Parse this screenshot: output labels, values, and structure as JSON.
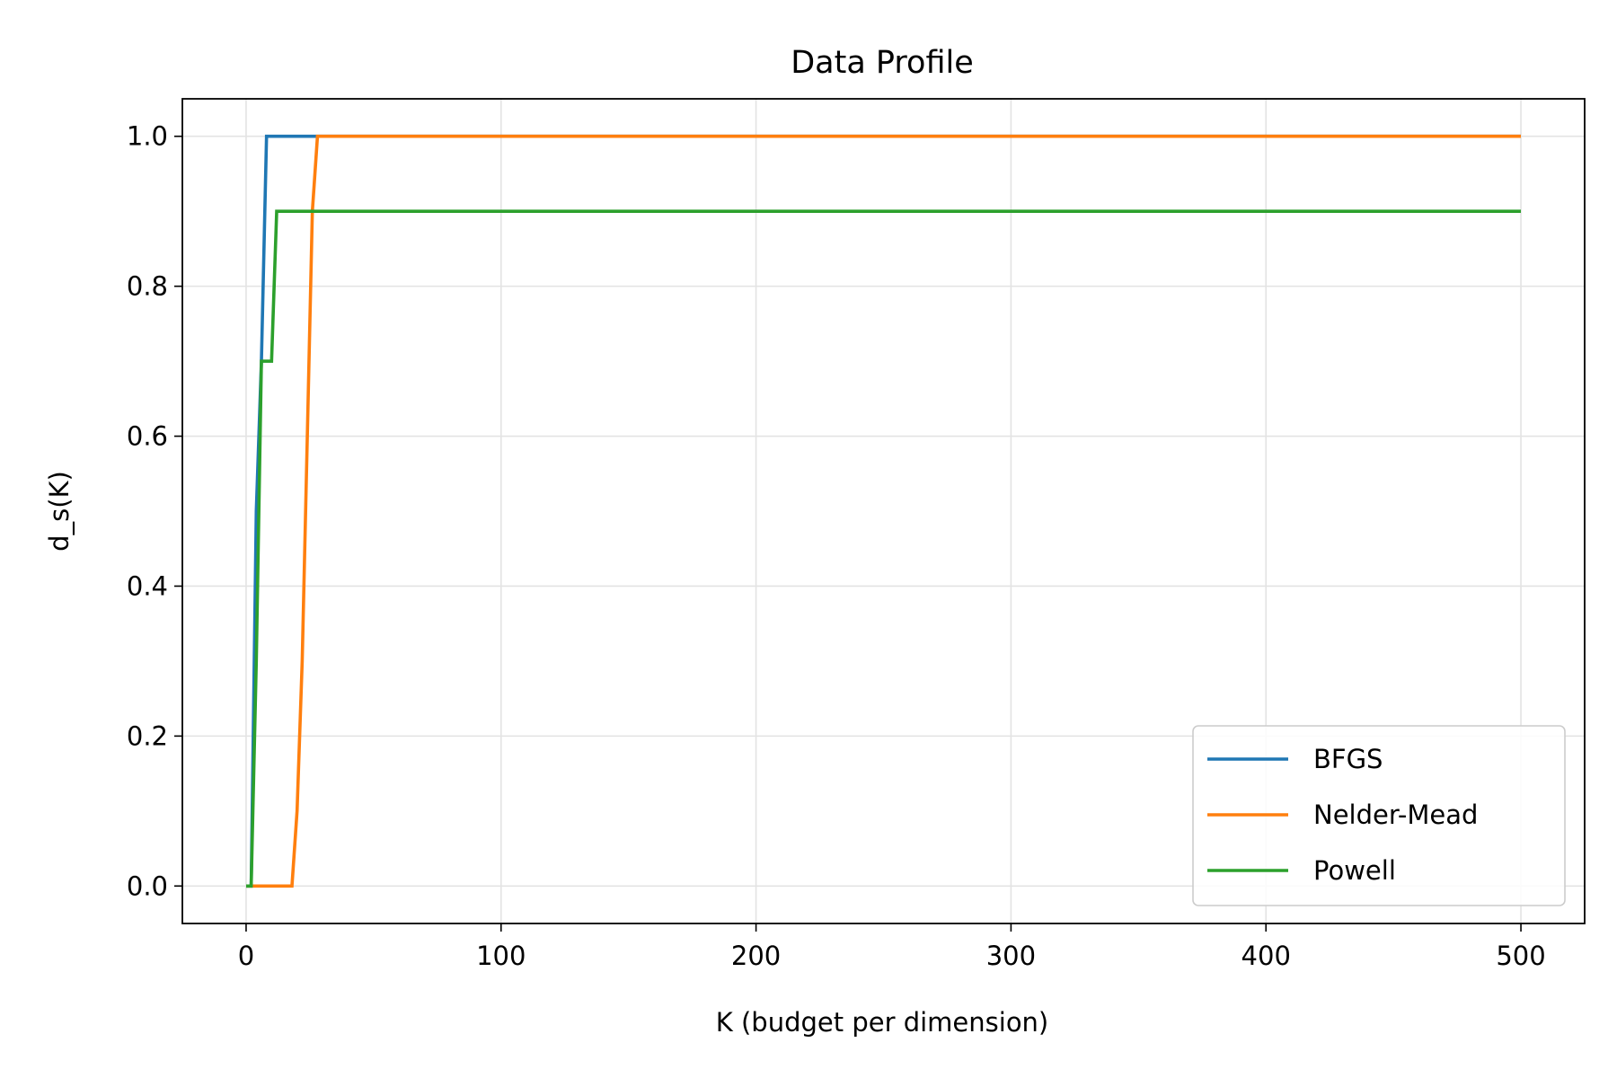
{
  "chart_data": {
    "type": "line",
    "title": "Data Profile",
    "xlabel": "K (budget per dimension)",
    "ylabel": "d_s(K)",
    "xlim": [
      -25,
      525
    ],
    "ylim": [
      -0.05,
      1.05
    ],
    "xticks": [
      0,
      100,
      200,
      300,
      400,
      500
    ],
    "yticks": [
      0.0,
      0.2,
      0.4,
      0.6,
      0.8,
      1.0
    ],
    "xtick_labels": [
      "0",
      "100",
      "200",
      "300",
      "400",
      "500"
    ],
    "ytick_labels": [
      "0.0",
      "0.2",
      "0.4",
      "0.6",
      "0.8",
      "1.0"
    ],
    "grid": true,
    "legend_position": "lower-right",
    "series": [
      {
        "name": "BFGS",
        "color": "#1f77b4",
        "x": [
          0,
          2,
          4,
          6,
          8,
          10,
          12,
          14,
          16,
          18,
          20,
          22,
          24,
          26,
          28,
          500
        ],
        "y": [
          0,
          0,
          0.5,
          0.7,
          1.0,
          1.0,
          1.0,
          1.0,
          1.0,
          1.0,
          1.0,
          1.0,
          1.0,
          1.0,
          1.0,
          1.0
        ]
      },
      {
        "name": "Nelder-Mead",
        "color": "#ff7f0e",
        "x": [
          0,
          2,
          4,
          6,
          8,
          10,
          12,
          14,
          16,
          18,
          20,
          22,
          24,
          26,
          28,
          500
        ],
        "y": [
          0,
          0,
          0,
          0,
          0,
          0,
          0,
          0,
          0,
          0,
          0.1,
          0.3,
          0.6,
          0.9,
          1.0,
          1.0
        ]
      },
      {
        "name": "Powell",
        "color": "#2ca02c",
        "x": [
          0,
          2,
          4,
          6,
          8,
          10,
          12,
          14,
          16,
          18,
          20,
          22,
          24,
          26,
          28,
          500
        ],
        "y": [
          0,
          0,
          0.3,
          0.7,
          0.7,
          0.7,
          0.9,
          0.9,
          0.9,
          0.9,
          0.9,
          0.9,
          0.9,
          0.9,
          0.9,
          0.9
        ]
      }
    ]
  }
}
